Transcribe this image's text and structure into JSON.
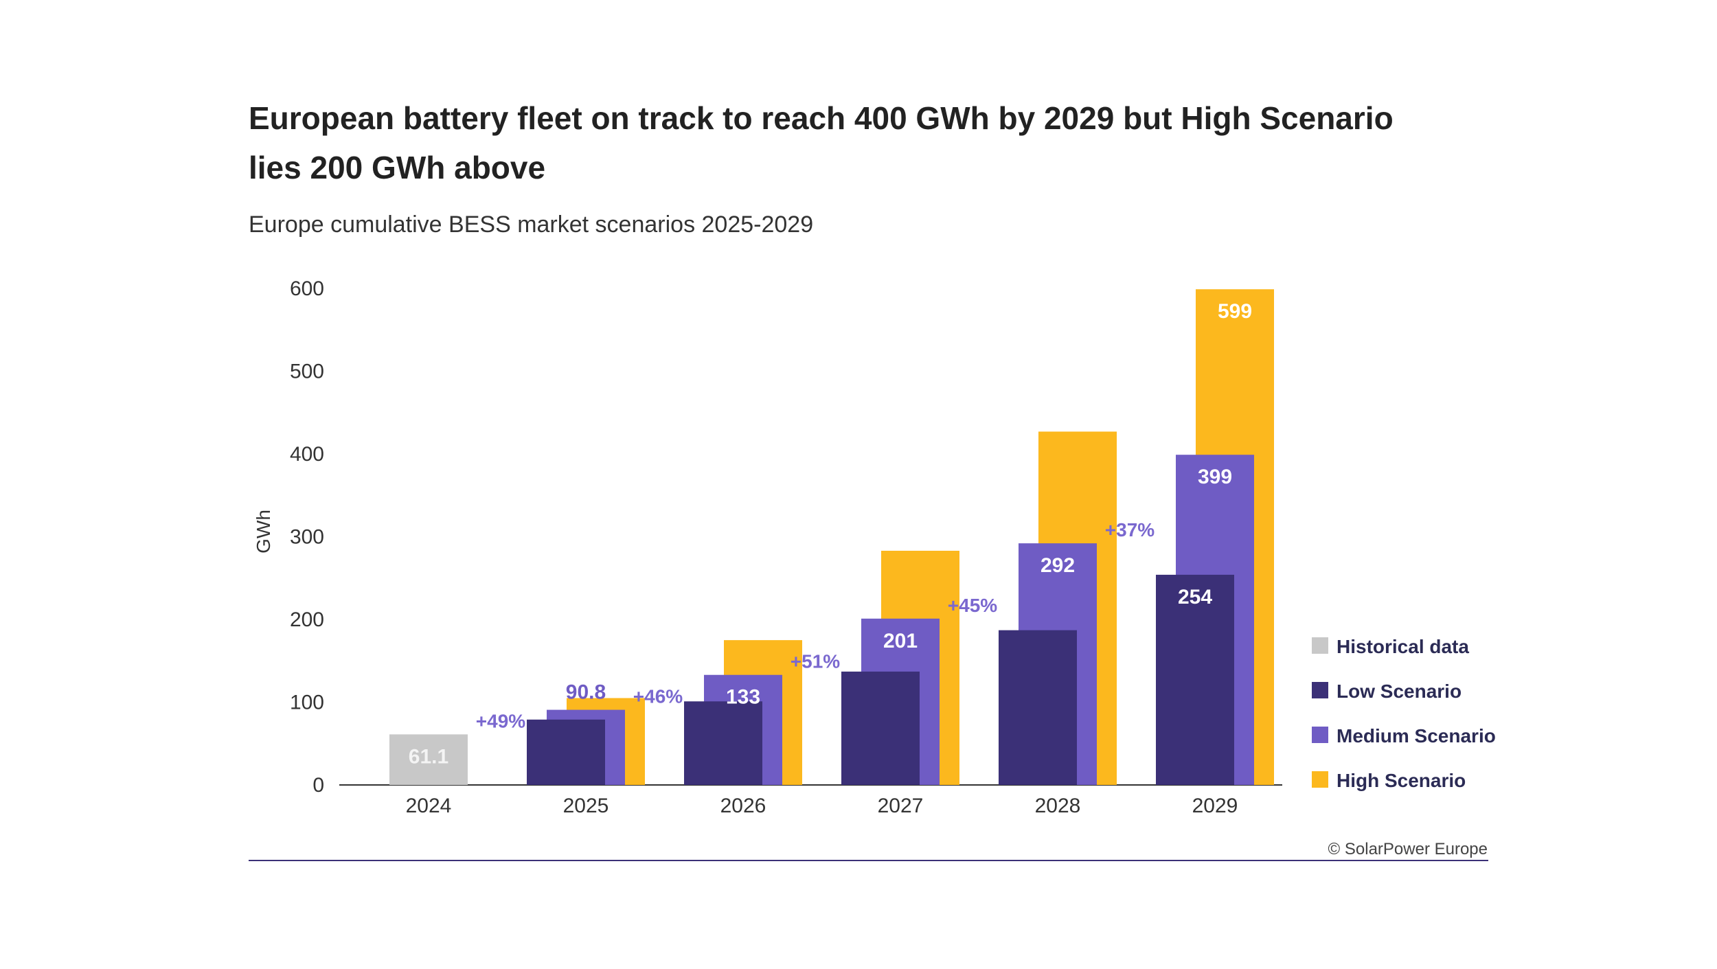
{
  "chart_data": {
    "type": "bar",
    "title_lines": [
      "European battery fleet on track to reach 400 GWh by 2029 but High Scenario",
      "lies 200 GWh above"
    ],
    "subtitle": "Europe cumulative BESS market scenarios 2025-2029",
    "ylabel": "GWh",
    "xlabel": "",
    "ylim": [
      0,
      600
    ],
    "yticks": [
      0,
      100,
      200,
      300,
      400,
      500,
      600
    ],
    "categories": [
      "2024",
      "2025",
      "2026",
      "2027",
      "2028",
      "2029"
    ],
    "series": [
      {
        "name": "Historical data",
        "color": "#c8c8c8",
        "values": [
          61.1,
          null,
          null,
          null,
          null,
          null
        ],
        "labels": [
          "61.1",
          "",
          "",
          "",
          "",
          ""
        ]
      },
      {
        "name": "Low Scenario",
        "color": "#3b3077",
        "values": [
          null,
          79,
          101,
          137,
          187,
          254
        ],
        "labels": [
          "",
          "",
          "",
          "",
          "",
          "254"
        ]
      },
      {
        "name": "Medium Scenario",
        "color": "#6f5cc4",
        "values": [
          null,
          90.8,
          133,
          201,
          292,
          399
        ],
        "labels": [
          "",
          "90.8",
          "133",
          "201",
          "292",
          "399"
        ]
      },
      {
        "name": "High Scenario",
        "color": "#fcb81e",
        "values": [
          null,
          105,
          175,
          283,
          427,
          599
        ],
        "labels": [
          "",
          "",
          "",
          "",
          "",
          "599"
        ]
      }
    ],
    "growth_labels": [
      "",
      "+49%",
      "+46%",
      "+51%",
      "+45%",
      "+37%"
    ],
    "legend_position": "right",
    "grid": false,
    "source": "© SolarPower Europe"
  }
}
